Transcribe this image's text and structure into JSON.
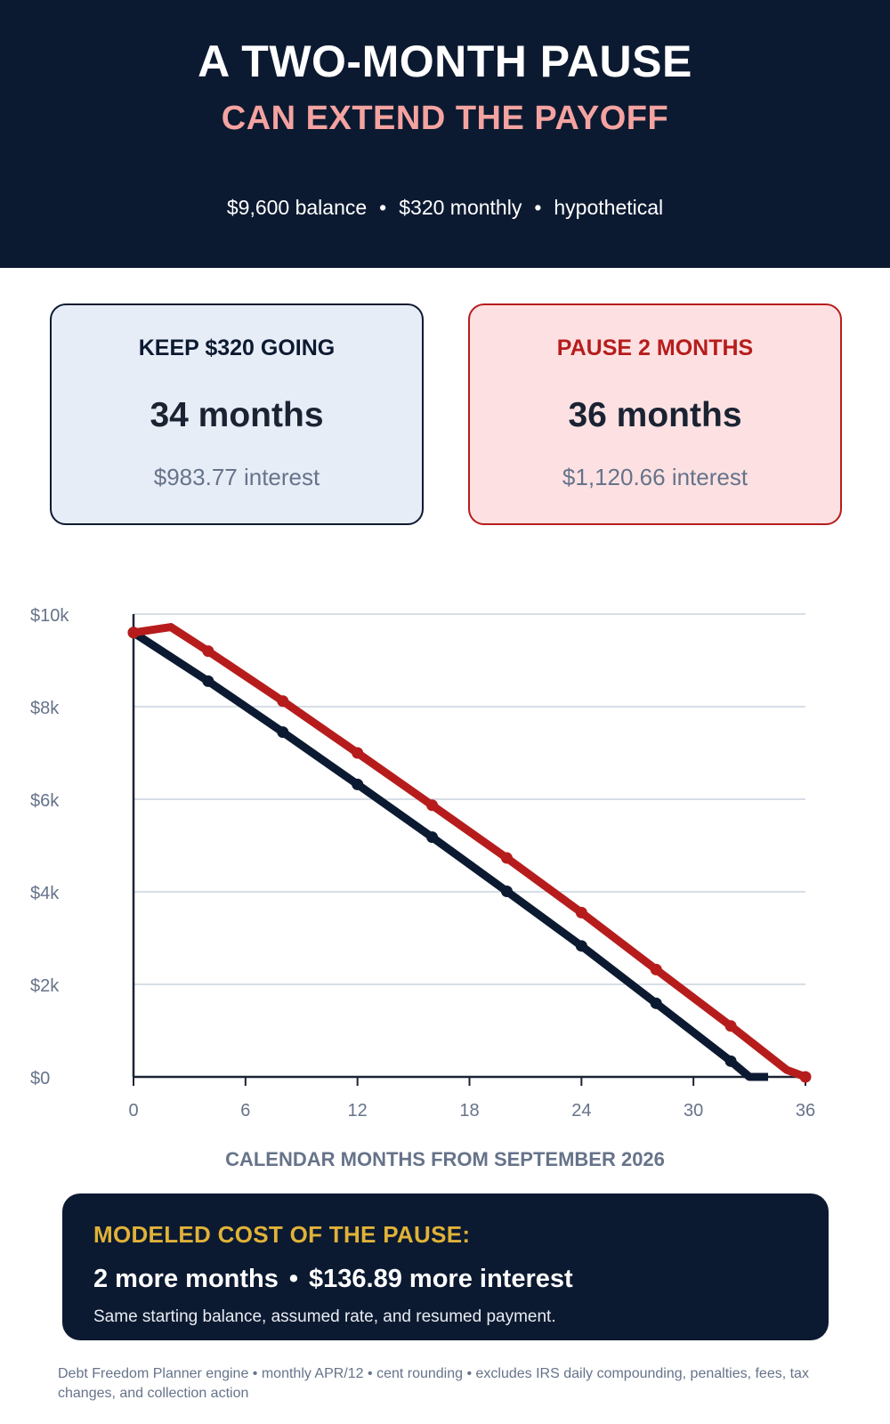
{
  "header": {
    "title": "A TWO-MONTH PAUSE",
    "subtitle": "CAN EXTEND THE PAYOFF",
    "meta": [
      "$9,600 balance",
      "$320 monthly",
      "hypothetical"
    ],
    "separator": "•"
  },
  "cards": {
    "keep": {
      "label": "KEEP $320 GOING",
      "months": "34 months",
      "interest": "$983.77 interest"
    },
    "pause": {
      "label": "PAUSE 2 MONTHS",
      "months": "36 months",
      "interest": "$1,120.66 interest"
    }
  },
  "chart_data": {
    "type": "line",
    "xlabel": "CALENDAR MONTHS FROM SEPTEMBER 2026",
    "ylabel": "",
    "xlim": [
      0,
      36
    ],
    "ylim": [
      0,
      10000
    ],
    "x_ticks": [
      0,
      6,
      12,
      18,
      24,
      30,
      36
    ],
    "y_ticks": [
      0,
      2000,
      4000,
      6000,
      8000,
      10000
    ],
    "y_tick_labels": [
      "$0",
      "$2k",
      "$4k",
      "$6k",
      "$8k",
      "$10k"
    ],
    "grid": true,
    "legend": "none",
    "series": [
      {
        "color": "#0c1a31",
        "points": [
          [
            0,
            9600
          ],
          [
            4,
            8550
          ],
          [
            8,
            7450
          ],
          [
            12,
            6320
          ],
          [
            16,
            5180
          ],
          [
            20,
            4010
          ],
          [
            24,
            2830
          ],
          [
            28,
            1590
          ],
          [
            32,
            340
          ],
          [
            33,
            0
          ],
          [
            34,
            0
          ]
        ],
        "markers": [
          0,
          4,
          8,
          12,
          16,
          20,
          24,
          28,
          32
        ]
      },
      {
        "color": "#b71c1c",
        "points": [
          [
            0,
            9600
          ],
          [
            2,
            9720
          ],
          [
            4,
            9200
          ],
          [
            8,
            8120
          ],
          [
            12,
            7000
          ],
          [
            16,
            5870
          ],
          [
            20,
            4730
          ],
          [
            24,
            3550
          ],
          [
            28,
            2320
          ],
          [
            32,
            1100
          ],
          [
            35,
            150
          ],
          [
            36,
            0
          ]
        ],
        "markers": [
          0,
          4,
          8,
          12,
          16,
          20,
          24,
          28,
          32,
          36
        ]
      }
    ]
  },
  "cost_box": {
    "label": "MODELED COST OF THE PAUSE:",
    "months": "2 more months",
    "separator": "•",
    "interest": "$136.89 more interest",
    "note": "Same starting balance, assumed rate, and resumed payment."
  },
  "footnote": "Debt Freedom Planner engine • monthly APR/12 • cent rounding • excludes IRS daily compounding, penalties, fees, tax changes, and collection action"
}
